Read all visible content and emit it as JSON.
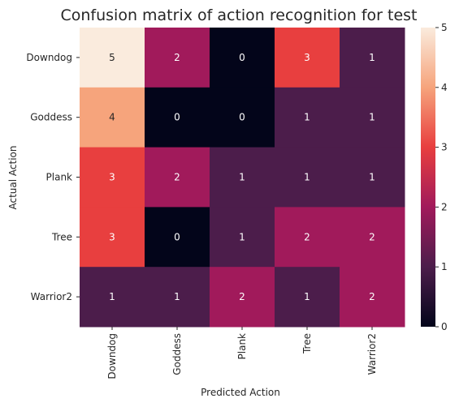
{
  "chart_data": {
    "type": "heatmap",
    "title": "Confusion matrix of action recognition for test",
    "xlabel": "Predicted Action",
    "ylabel": "Actual Action",
    "x_categories": [
      "Downdog",
      "Goddess",
      "Plank",
      "Tree",
      "Warrior2"
    ],
    "y_categories": [
      "Downdog",
      "Goddess",
      "Plank",
      "Tree",
      "Warrior2"
    ],
    "values": [
      [
        5,
        2,
        0,
        3,
        1
      ],
      [
        4,
        0,
        0,
        1,
        1
      ],
      [
        3,
        2,
        1,
        1,
        1
      ],
      [
        3,
        0,
        1,
        2,
        2
      ],
      [
        1,
        1,
        2,
        1,
        2
      ]
    ],
    "annotated": true,
    "colormap": "rocket",
    "vmin": 0,
    "vmax": 5,
    "colorbar_ticks": [
      0,
      1,
      2,
      3,
      4,
      5
    ]
  }
}
